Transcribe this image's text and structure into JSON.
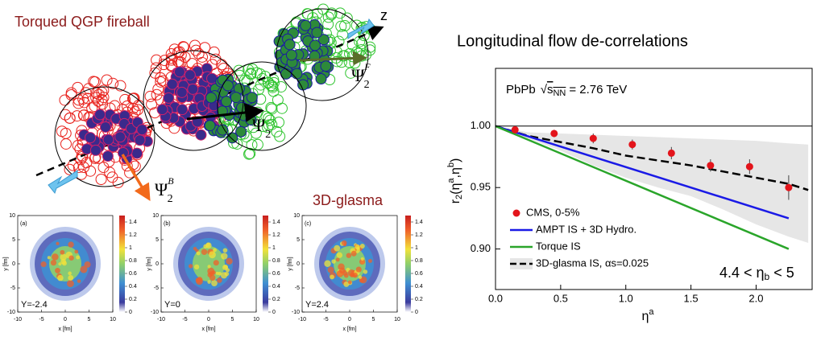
{
  "illustration": {
    "title": "Torqued QGP fireball",
    "axis": "z",
    "psi_forward": {
      "symbol": "Ψ",
      "sub": "2",
      "sup": "F"
    },
    "psi_mid": {
      "symbol": "Ψ",
      "sub": "2"
    },
    "psi_backward": {
      "symbol": "Ψ",
      "sub": "2",
      "sup": "B"
    },
    "glasma": "3D-glasma"
  },
  "chart_data": [
    {
      "type": "line",
      "title": "Longitudinal flow de-correlations",
      "energy_label": {
        "prefix": "PbPb",
        "root": "√",
        "var": "s",
        "sub": "NN",
        "suffix": "= 2.76 TeV"
      },
      "annotation": {
        "text": "4.4 < η",
        "sub": "b",
        "tail": " < 5"
      },
      "xlabel": [
        "η",
        "a"
      ],
      "ylabel": [
        "r",
        "2",
        "(η",
        "a",
        ",η",
        "b",
        ")"
      ],
      "xlim": [
        0,
        2.43
      ],
      "ylim": [
        0.867,
        1.047
      ],
      "xticks": [
        {
          "value": 0,
          "label": "0.0"
        },
        {
          "value": 0.5,
          "label": "0.5"
        },
        {
          "value": 1,
          "label": "1.0"
        },
        {
          "value": 1.5,
          "label": "1.5"
        },
        {
          "value": 2,
          "label": "2.0"
        }
      ],
      "yticks": [
        {
          "value": 0.9,
          "label": "0.90"
        },
        0.95,
        {
          "value": 1,
          "label": "1.00"
        }
      ],
      "reference_line": 1,
      "legend": "lower left",
      "series": [
        {
          "name": "CMS, 0-5%",
          "kind": "scatter",
          "color": "#e3141b",
          "x": [
            0.15,
            0.45,
            0.75,
            1.05,
            1.35,
            1.65,
            1.95,
            2.25
          ],
          "values": [
            0.997,
            0.994,
            0.99,
            0.985,
            0.978,
            0.968,
            0.967,
            0.95
          ],
          "errors": [
            0.002,
            0.003,
            0.004,
            0.004,
            0.005,
            0.005,
            0.006,
            0.01
          ]
        },
        {
          "name": "AMPT IS + 3D Hydro.",
          "kind": "line",
          "color": "#1a1ae6",
          "x": [
            0,
            2.25
          ],
          "values": [
            1.0,
            0.925
          ]
        },
        {
          "name": "Torque IS",
          "kind": "line",
          "color": "#2aa52a",
          "x": [
            0,
            2.25
          ],
          "values": [
            1.0,
            0.9
          ]
        },
        {
          "name": "3D-glasma IS, αs=0.025",
          "kind": "dashed",
          "color": "#000000",
          "band_color": "#e6e6e6",
          "x": [
            0,
            0.25,
            0.5,
            0.75,
            1.0,
            1.25,
            1.5,
            1.75,
            2.0,
            2.25,
            2.4
          ],
          "values": [
            1.0,
            0.992,
            0.987,
            0.982,
            0.976,
            0.972,
            0.968,
            0.963,
            0.958,
            0.953,
            0.948
          ],
          "band_upper": [
            1.0,
            0.995,
            0.994,
            0.993,
            0.992,
            0.991,
            0.99,
            0.989,
            0.988,
            0.986,
            0.985
          ],
          "band_lower": [
            1.0,
            0.99,
            0.98,
            0.968,
            0.958,
            0.95,
            0.943,
            0.932,
            0.92,
            0.91,
            0.905
          ]
        }
      ]
    },
    {
      "type": "heatmap",
      "panel": "(a)",
      "annotation": "Y=-2.4",
      "xlabel": "x [fm]",
      "ylabel": "y [fm]",
      "xlim": [
        -10,
        10
      ],
      "xticks": [
        -10,
        -5,
        0,
        5,
        10
      ],
      "ylim": [
        -10,
        10
      ],
      "yticks": [
        -10,
        -5,
        0,
        5,
        10
      ],
      "clim": [
        0,
        1.5
      ],
      "cticks": [
        0,
        0.2,
        0.4,
        0.6,
        0.8,
        1,
        1.2,
        1.4
      ]
    },
    {
      "type": "heatmap",
      "panel": "(b)",
      "annotation": "Y=0",
      "xlabel": "x [fm]",
      "ylabel": "y [fm]",
      "xlim": [
        -10,
        10
      ],
      "xticks": [
        -10,
        -5,
        0,
        5,
        10
      ],
      "ylim": [
        -10,
        10
      ],
      "yticks": [
        -10,
        -5,
        0,
        5,
        10
      ],
      "clim": [
        0,
        1.5
      ],
      "cticks": [
        0,
        0.2,
        0.4,
        0.6,
        0.8,
        1,
        1.2,
        1.4
      ]
    },
    {
      "type": "heatmap",
      "panel": "(c)",
      "annotation": "Y=2.4",
      "xlabel": "x [fm]",
      "ylabel": "y [fm]",
      "xlim": [
        -10,
        10
      ],
      "xticks": [
        -10,
        -5,
        0,
        5,
        10
      ],
      "ylim": [
        -10,
        10
      ],
      "yticks": [
        -10,
        -5,
        0,
        5,
        10
      ],
      "clim": [
        0,
        1.5
      ],
      "cticks": [
        0,
        0.2,
        0.4,
        0.6,
        0.8,
        1,
        1.2,
        1.4
      ]
    }
  ]
}
